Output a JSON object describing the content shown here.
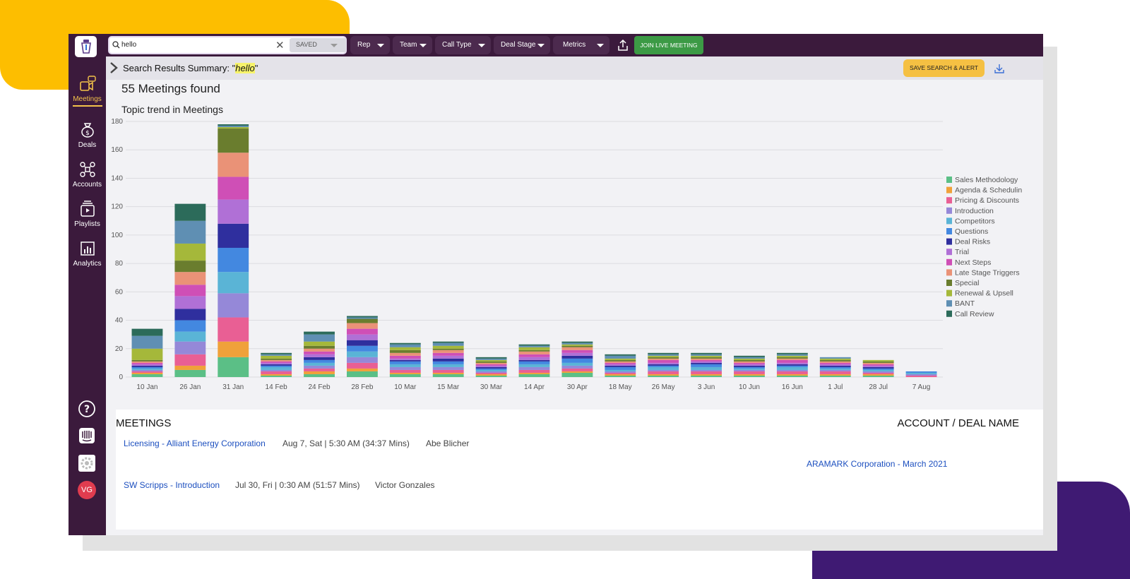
{
  "topbar": {
    "search_value": "hello",
    "saved_label": "SAVED",
    "filters": [
      "Rep",
      "Team",
      "Call Type",
      "Deal Stage",
      "Metrics"
    ],
    "join_label": "JOIN LIVE MEETING"
  },
  "sidebar": {
    "items": [
      {
        "label": "Meetings",
        "icon": "meetings-icon"
      },
      {
        "label": "Deals",
        "icon": "deals-icon"
      },
      {
        "label": "Accounts",
        "icon": "accounts-icon"
      },
      {
        "label": "Playlists",
        "icon": "playlists-icon"
      },
      {
        "label": "Analytics",
        "icon": "analytics-icon"
      }
    ],
    "avatar_initials": "VG"
  },
  "summary": {
    "prefix": "Search Results Summary: \"",
    "term": "hello",
    "suffix": "\"",
    "save_alert_label": "SAVE SEARCH & ALERT"
  },
  "results": {
    "found": "55 Meetings found",
    "chart_heading": "Topic trend in Meetings"
  },
  "chart_data": {
    "type": "bar",
    "stacked": true,
    "categories": [
      "10 Jan",
      "26 Jan",
      "31 Jan",
      "14 Feb",
      "24 Feb",
      "28 Feb",
      "10 Mar",
      "15 Mar",
      "30 Mar",
      "14 Apr",
      "30 Apr",
      "18 May",
      "26 May",
      "3 Jun",
      "10 Jun",
      "16 Jun",
      "1 Jul",
      "28 Jul",
      "7 Aug"
    ],
    "ylim": [
      0,
      180
    ],
    "yticks": [
      0,
      20,
      40,
      60,
      80,
      100,
      120,
      140,
      160,
      180
    ],
    "grid": true,
    "legend_position": "right",
    "series": [
      {
        "name": "Sales Methodology",
        "color": "#5bbf86",
        "values": [
          2,
          5,
          14,
          1,
          2,
          4,
          2,
          2,
          1,
          2,
          3,
          1,
          1,
          1,
          1,
          1,
          1,
          1,
          0
        ]
      },
      {
        "name": "Agenda & Schedulin",
        "color": "#f0a13a",
        "values": [
          1,
          3,
          11,
          1,
          2,
          2,
          1,
          1,
          1,
          1,
          1,
          1,
          1,
          1,
          1,
          1,
          1,
          1,
          0
        ]
      },
      {
        "name": "Pricing & Discounts",
        "color": "#e95f94",
        "values": [
          1,
          8,
          17,
          2,
          2,
          4,
          2,
          2,
          1,
          2,
          2,
          1,
          2,
          2,
          2,
          2,
          2,
          1,
          1
        ]
      },
      {
        "name": "Introduction",
        "color": "#9588d8",
        "values": [
          1,
          9,
          17,
          1,
          2,
          4,
          2,
          2,
          1,
          2,
          2,
          1,
          1,
          1,
          1,
          1,
          1,
          1,
          1
        ]
      },
      {
        "name": "Competitors",
        "color": "#5ab4d6",
        "values": [
          1,
          7,
          15,
          2,
          2,
          4,
          2,
          2,
          1,
          2,
          2,
          1,
          2,
          2,
          1,
          2,
          1,
          1,
          1
        ]
      },
      {
        "name": "Questions",
        "color": "#4388e0",
        "values": [
          1,
          8,
          17,
          1,
          2,
          4,
          2,
          2,
          1,
          2,
          3,
          2,
          1,
          2,
          1,
          1,
          1,
          1,
          1
        ]
      },
      {
        "name": "Deal Risks",
        "color": "#2f2f9e",
        "values": [
          1,
          8,
          17,
          1,
          2,
          4,
          1,
          2,
          1,
          1,
          2,
          1,
          1,
          1,
          1,
          1,
          1,
          1,
          0
        ]
      },
      {
        "name": "Trial",
        "color": "#b070d6",
        "values": [
          1,
          9,
          17,
          1,
          2,
          4,
          1,
          2,
          1,
          2,
          2,
          1,
          1,
          1,
          1,
          1,
          1,
          1,
          0
        ]
      },
      {
        "name": "Next Steps",
        "color": "#cf4fb6",
        "values": [
          1,
          8,
          16,
          1,
          2,
          4,
          2,
          2,
          1,
          2,
          2,
          1,
          2,
          1,
          1,
          2,
          1,
          1,
          0
        ]
      },
      {
        "name": "Late Stage Triggers",
        "color": "#ea9277",
        "values": [
          1,
          9,
          17,
          1,
          2,
          4,
          2,
          2,
          1,
          2,
          2,
          1,
          1,
          1,
          1,
          1,
          1,
          1,
          0
        ]
      },
      {
        "name": "Special",
        "color": "#6a7d2e",
        "values": [
          1,
          8,
          17,
          1,
          2,
          3,
          2,
          1,
          1,
          1,
          1,
          1,
          1,
          1,
          1,
          1,
          1,
          1,
          0
        ]
      },
      {
        "name": "Renewal & Upsell",
        "color": "#a5b83a",
        "values": [
          8,
          12,
          1,
          2,
          3,
          0,
          2,
          2,
          1,
          2,
          1,
          1,
          1,
          1,
          1,
          1,
          1,
          1,
          0
        ]
      },
      {
        "name": "BANT",
        "color": "#5f8fb3",
        "values": [
          9,
          16,
          1,
          1,
          5,
          1,
          2,
          2,
          1,
          1,
          1,
          2,
          1,
          1,
          1,
          1,
          1,
          0,
          0
        ]
      },
      {
        "name": "Call Review",
        "color": "#2c6b5a",
        "values": [
          5,
          12,
          1,
          1,
          2,
          1,
          1,
          1,
          1,
          1,
          1,
          1,
          1,
          1,
          1,
          1,
          0,
          0,
          0
        ]
      }
    ]
  },
  "meetings": {
    "title": "MEETINGS",
    "account_header": "ACCOUNT / DEAL NAME",
    "rows": [
      {
        "title": "Licensing - Alliant Energy Corporation",
        "when": "Aug 7, Sat | 5:30 AM (34:37 Mins)",
        "rep": "Abe Blicher"
      },
      {
        "title": "SW Scripps - Introduction",
        "when": "Jul 30, Fri | 0:30 AM (51:57 Mins)",
        "rep": "Victor Gonzales"
      }
    ],
    "account_link": "ARAMARK Corporation - March 2021"
  }
}
